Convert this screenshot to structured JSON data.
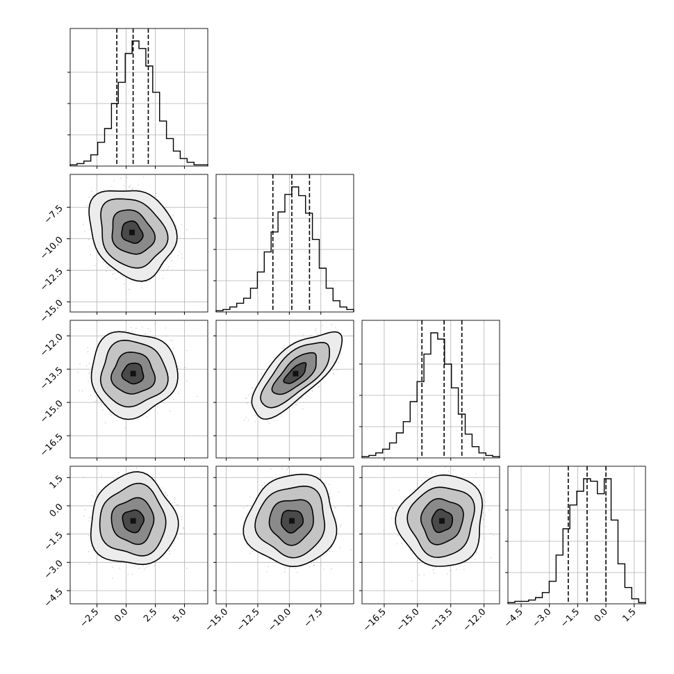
{
  "chart_data": {
    "type": "corner",
    "grid": true,
    "parameters": [
      {
        "xlim": [
          -4.8,
          7.0
        ],
        "ticks": [
          -2.5,
          0.0,
          2.5,
          5.0
        ],
        "tick_labels": [
          "−2.5",
          "0.0",
          "2.5",
          "5.0"
        ],
        "quantiles": [
          -0.8,
          0.6,
          1.9
        ],
        "histogram": {
          "start": -4.8,
          "step": 0.59,
          "counts": [
            1,
            2,
            4,
            9,
            19,
            30,
            50,
            67,
            90,
            100,
            94,
            80,
            59,
            36,
            22,
            12,
            6,
            3,
            1,
            1
          ]
        },
        "scatter_center": 0.5,
        "scatter_sigma": 1.45
      },
      {
        "xlim": [
          -15.8,
          -4.9
        ],
        "ticks": [
          -15.0,
          -12.5,
          -10.0,
          -7.5
        ],
        "tick_labels": [
          "−15.0",
          "−12.5",
          "−10.0",
          "−7.5"
        ],
        "quantiles": [
          -11.3,
          -9.8,
          -8.4
        ],
        "histogram": {
          "start": -15.8,
          "step": 0.545,
          "counts": [
            1,
            2,
            4,
            7,
            11,
            19,
            32,
            48,
            64,
            80,
            94,
            100,
            93,
            79,
            58,
            35,
            19,
            9,
            4,
            2
          ]
        },
        "scatter_center": -9.9,
        "scatter_sigma": 1.4
      },
      {
        "xlim": [
          -17.5,
          -11.3
        ],
        "ticks": [
          -16.5,
          -15.0,
          -13.5,
          -12.0
        ],
        "tick_labels": [
          "−16.5",
          "−15.0",
          "−13.5",
          "−12.0"
        ],
        "quantiles": [
          -14.8,
          -13.8,
          -13.0
        ],
        "histogram": {
          "start": -17.5,
          "step": 0.31,
          "counts": [
            1,
            2,
            4,
            7,
            12,
            20,
            29,
            45,
            61,
            83,
            100,
            95,
            75,
            56,
            35,
            19,
            9,
            4,
            2,
            1
          ]
        },
        "scatter_center": -13.9,
        "scatter_sigma": 0.75
      },
      {
        "xlim": [
          -5.2,
          2.1
        ],
        "ticks": [
          -4.5,
          -3.0,
          -1.5,
          0.0,
          1.5
        ],
        "tick_labels": [
          "−4.5",
          "−3.0",
          "−1.5",
          "0.0",
          "1.5"
        ],
        "quantiles": [
          -2.0,
          -1.0,
          -0.0
        ],
        "histogram": {
          "start": -5.2,
          "step": 0.365,
          "counts": [
            1,
            2,
            2,
            3,
            5,
            9,
            18,
            39,
            60,
            79,
            90,
            100,
            98,
            88,
            100,
            67,
            32,
            13,
            4,
            1
          ]
        },
        "scatter_center": -0.85,
        "scatter_sigma": 0.95
      }
    ],
    "contour_pairs": [
      {
        "row": 1,
        "col": 0,
        "center": [
          0.5,
          -9.5
        ],
        "rho": -0.18
      },
      {
        "row": 2,
        "col": 0,
        "center": [
          0.6,
          -13.7
        ],
        "rho": 0.0
      },
      {
        "row": 2,
        "col": 1,
        "center": [
          -9.5,
          -13.7
        ],
        "rho": 0.72
      },
      {
        "row": 3,
        "col": 0,
        "center": [
          0.6,
          -0.8
        ],
        "rho": 0.0
      },
      {
        "row": 3,
        "col": 1,
        "center": [
          -9.8,
          -0.8
        ],
        "rho": 0.05
      },
      {
        "row": 3,
        "col": 2,
        "center": [
          -13.9,
          -0.8
        ],
        "rho": 0.05
      }
    ],
    "colors": {
      "line": "#000000",
      "grid": "#b0b0b0",
      "scatter": "#9a9a9a",
      "background": "#ffffff"
    }
  }
}
